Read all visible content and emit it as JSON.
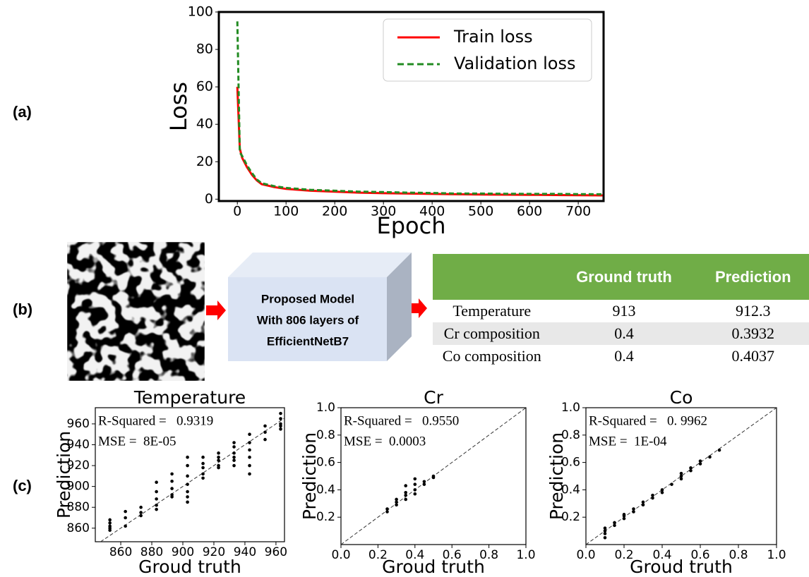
{
  "panel_labels": [
    "(a)",
    "(b)",
    "(c)"
  ],
  "diagram": {
    "box_lines": [
      "Proposed Model",
      "With 806 layers of",
      "EfficientNetB7"
    ]
  },
  "table": {
    "columns": [
      "Ground truth",
      "Prediction"
    ],
    "rows": [
      [
        "Temperature",
        913,
        912.3
      ],
      [
        "Cr composition",
        0.4,
        0.3932
      ],
      [
        "Co composition",
        0.4,
        0.4037
      ]
    ]
  },
  "chart_data": [
    {
      "type": "line",
      "x_label": "Epoch",
      "y_label": "Loss",
      "legend": "upper right",
      "x": [
        0,
        5,
        10,
        20,
        30,
        40,
        50,
        75,
        100,
        150,
        200,
        250,
        300,
        350,
        400,
        450,
        500,
        550,
        600,
        650,
        700,
        750
      ],
      "series": [
        {
          "name": "Train loss",
          "color": "#ff0000",
          "linestyle": "solid",
          "values": [
            60,
            27,
            22,
            17,
            13,
            10,
            8,
            6.5,
            5.5,
            4.5,
            4,
            3.5,
            3.2,
            3,
            2.8,
            2.6,
            2.5,
            2.4,
            2.3,
            2.2,
            2.1,
            2
          ]
        },
        {
          "name": "Validation loss",
          "color": "#228b22",
          "linestyle": "dashed",
          "values": [
            95,
            25,
            23,
            18,
            14,
            10.5,
            8.5,
            7,
            6,
            5,
            4.5,
            4,
            3.8,
            3.5,
            3.3,
            3,
            3,
            2.9,
            2.8,
            2.8,
            2.7,
            2.6
          ]
        }
      ],
      "xlim": [
        -38,
        752
      ],
      "ylim": [
        -1,
        100
      ],
      "xticks": [
        0,
        100,
        200,
        300,
        400,
        500,
        600,
        700
      ],
      "yticks": [
        0,
        20,
        40,
        60,
        80,
        100
      ]
    },
    {
      "type": "scatter",
      "title": "Temperature",
      "x_label": "Groud truth",
      "y_label": "Prediction",
      "annotations": [
        "R-Squared =   0.9319",
        "MSE =  8E-05"
      ],
      "reference_line": true,
      "series": [
        {
          "color": "#000000",
          "x": [
            853,
            853,
            853,
            853,
            853,
            863,
            863,
            863,
            873,
            873,
            873,
            883,
            883,
            883,
            883,
            883,
            893,
            893,
            893,
            893,
            893,
            903,
            903,
            903,
            903,
            903,
            903,
            903,
            913,
            913,
            913,
            913,
            913,
            923,
            923,
            923,
            923,
            923,
            933,
            933,
            933,
            933,
            933,
            933,
            943,
            943,
            943,
            943,
            943,
            943,
            953,
            953,
            953,
            963,
            963,
            963,
            963,
            963
          ],
          "values": [
            868,
            865,
            862,
            860,
            858,
            876,
            870,
            862,
            880,
            875,
            872,
            904,
            895,
            888,
            882,
            878,
            912,
            905,
            898,
            892,
            890,
            928,
            920,
            910,
            902,
            895,
            890,
            885,
            928,
            922,
            918,
            912,
            908,
            932,
            928,
            925,
            920,
            918,
            942,
            938,
            932,
            928,
            925,
            920,
            950,
            942,
            935,
            928,
            920,
            912,
            958,
            952,
            945,
            970,
            965,
            960,
            958,
            955
          ]
        }
      ],
      "xlim": [
        843.6,
        965.5
      ],
      "ylim": [
        847,
        975.5
      ],
      "xticks": [
        860,
        880,
        900,
        920,
        940,
        960
      ],
      "yticks": [
        860,
        880,
        900,
        920,
        940,
        960
      ]
    },
    {
      "type": "scatter",
      "title": "Cr",
      "x_label": "Groud truth",
      "y_label": "Prediction",
      "annotations": [
        "R-Squared =   0.9550",
        "MSE =  0.0003"
      ],
      "reference_line": true,
      "series": [
        {
          "color": "#000000",
          "x": [
            0.25,
            0.25,
            0.3,
            0.3,
            0.3,
            0.35,
            0.35,
            0.35,
            0.35,
            0.4,
            0.4,
            0.4,
            0.4,
            0.45,
            0.45,
            0.5,
            0.5
          ],
          "values": [
            0.24,
            0.26,
            0.29,
            0.31,
            0.33,
            0.33,
            0.36,
            0.38,
            0.43,
            0.37,
            0.4,
            0.44,
            0.48,
            0.44,
            0.46,
            0.49,
            0.5
          ]
        }
      ],
      "xlim": [
        0,
        1
      ],
      "ylim": [
        0,
        1
      ],
      "xticks": [
        {
          "value": 0,
          "label": "0.0"
        },
        0.2,
        0.4,
        0.6,
        0.8,
        {
          "value": 1,
          "label": "1.0"
        }
      ],
      "yticks": [
        0.2,
        0.4,
        0.6,
        0.8,
        {
          "value": 1,
          "label": "1.0"
        }
      ]
    },
    {
      "type": "scatter",
      "title": "Co",
      "x_label": "Groud truth",
      "y_label": "Prediction",
      "annotations": [
        "R-Squared =   0. 9962",
        "MSE =  1E-04"
      ],
      "reference_line": true,
      "series": [
        {
          "color": "#000000",
          "x": [
            0.1,
            0.1,
            0.1,
            0.1,
            0.15,
            0.15,
            0.2,
            0.2,
            0.2,
            0.25,
            0.25,
            0.3,
            0.3,
            0.35,
            0.35,
            0.4,
            0.4,
            0.45,
            0.5,
            0.5,
            0.5,
            0.55,
            0.55,
            0.6,
            0.6,
            0.65,
            0.7
          ],
          "values": [
            0.05,
            0.08,
            0.1,
            0.12,
            0.14,
            0.16,
            0.19,
            0.21,
            0.22,
            0.24,
            0.26,
            0.29,
            0.31,
            0.34,
            0.36,
            0.38,
            0.4,
            0.44,
            0.48,
            0.5,
            0.52,
            0.54,
            0.56,
            0.59,
            0.61,
            0.64,
            0.69
          ]
        }
      ],
      "xlim": [
        0,
        1
      ],
      "ylim": [
        0,
        1
      ],
      "xticks": [
        {
          "value": 0,
          "label": "0.0"
        },
        0.2,
        0.4,
        0.6,
        0.8,
        {
          "value": 1,
          "label": "1.0"
        }
      ],
      "yticks": [
        0.2,
        0.4,
        0.6,
        0.8,
        {
          "value": 1,
          "label": "1.0"
        }
      ]
    }
  ]
}
